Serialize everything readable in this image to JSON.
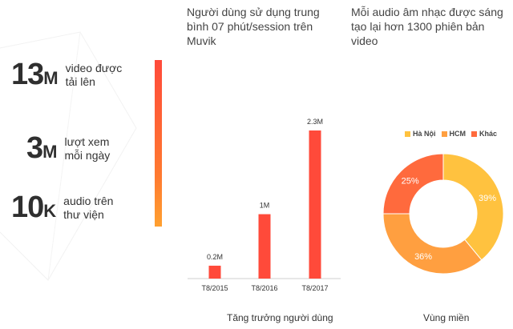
{
  "stats": [
    {
      "value": "13",
      "unit": "M",
      "label_line1": "video được",
      "label_line2": "tải lên"
    },
    {
      "value": "3",
      "unit": "M",
      "label_line1": "lượt xem",
      "label_line2": "mỗi ngày"
    },
    {
      "value": "10",
      "unit": "K",
      "label_line1": "audio trên",
      "label_line2": "thư viện"
    }
  ],
  "bar_heading": {
    "line1": "Người dùng sử dụng trung",
    "line2": "bình 07 phút/session trên",
    "line3": "Muvik"
  },
  "donut_heading": {
    "line1": "Mỗi audio âm nhạc được sáng",
    "line2": "tạo lại hơn 1300 phiên bản",
    "line3": "video"
  },
  "chart_data": [
    {
      "type": "bar",
      "categories": [
        "T8/2015",
        "T8/2016",
        "T8/2017"
      ],
      "values": [
        0.2,
        1,
        2.3
      ],
      "data_labels": [
        "0.2M",
        "1M",
        "2.3M"
      ],
      "title": "Tăng trưởng người dùng",
      "colors": [
        "#ff4a3a",
        "#ff4a3a",
        "#ff4a3a"
      ],
      "ylim": [
        0,
        2.3
      ]
    },
    {
      "type": "pie",
      "donut": true,
      "categories": [
        "Hà Nội",
        "HCM",
        "Khác"
      ],
      "values": [
        39,
        36,
        25
      ],
      "data_labels": [
        "39%",
        "36%",
        "25%"
      ],
      "title": "Vùng miền",
      "colors": [
        "#ffc23f",
        "#ff9f40",
        "#ff6a3d"
      ],
      "legend": "top"
    }
  ]
}
